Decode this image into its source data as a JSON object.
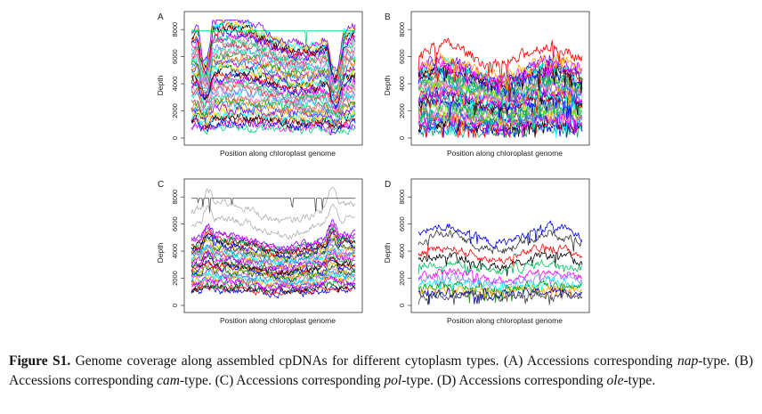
{
  "chart_data": [
    {
      "panel": "A",
      "type": "line",
      "xlabel": "Position along chloroplast genome",
      "ylabel": "Depth",
      "yticks": [
        0,
        2000,
        4000,
        6000,
        8000
      ],
      "ylim": [
        0,
        8800
      ],
      "xlim": [
        0,
        1
      ],
      "n_series": 40,
      "level_range": [
        700,
        7900
      ],
      "top_flat": 7900,
      "profile": "dips-at-ends",
      "noise": 550,
      "colors": [
        "#00d27a",
        "#ff00ff",
        "#0000ff",
        "#ff0000",
        "#000000",
        "#00ffff",
        "#ffd400",
        "#8b00ff",
        "#1e90ff",
        "#ff7f00",
        "#00a000",
        "#ff69b4",
        "#00ffcc",
        "#7f7fff",
        "#ff3030",
        "#a0a0a0"
      ]
    },
    {
      "panel": "B",
      "type": "line",
      "xlabel": "Position along chloroplast genome",
      "ylabel": "Depth",
      "yticks": [
        0,
        2000,
        4000,
        6000,
        8000
      ],
      "ylim": [
        0,
        8800
      ],
      "xlim": [
        0,
        1
      ],
      "n_series": 36,
      "level_range": [
        600,
        5200
      ],
      "top_series": {
        "color": "#ff0000",
        "level": 6100
      },
      "profile": "jagged",
      "noise": 700,
      "colors": [
        "#00a36c",
        "#0000ff",
        "#ff0000",
        "#000000",
        "#00ffff",
        "#ff00ff",
        "#8b00ff",
        "#ffa500",
        "#1e90ff",
        "#00cc66",
        "#ff69b4",
        "#7cfc00",
        "#008b8b",
        "#a0a0a0"
      ]
    },
    {
      "panel": "C",
      "type": "line",
      "xlabel": "Position along chloroplast genome",
      "ylabel": "Depth",
      "yticks": [
        0,
        2000,
        4000,
        6000,
        8000
      ],
      "ylim": [
        0,
        8800
      ],
      "xlim": [
        0,
        1
      ],
      "n_series": 30,
      "level_range": [
        1000,
        4800
      ],
      "top_flat": 7900,
      "top_flat_color": "#555555",
      "grey_series": [
        5800,
        6900
      ],
      "profile": "smooth",
      "noise": 450,
      "colors": [
        "#0000ff",
        "#ff0000",
        "#000000",
        "#00b050",
        "#ff00ff",
        "#8b00ff",
        "#ffa500",
        "#00ffff",
        "#1e90ff",
        "#ff69b4",
        "#006400",
        "#b8b800"
      ]
    },
    {
      "panel": "D",
      "type": "line",
      "xlabel": "Position along chloroplast genome",
      "ylabel": "Depth",
      "yticks": [
        0,
        2000,
        4000,
        6000,
        8000
      ],
      "ylim": [
        0,
        8800
      ],
      "xlim": [
        0,
        1
      ],
      "n_series": 12,
      "series_levels": [
        {
          "color": "#0000ff",
          "level": 5200
        },
        {
          "color": "#333333",
          "level": 4700
        },
        {
          "color": "#ff0000",
          "level": 3800
        },
        {
          "color": "#000000",
          "level": 3300
        },
        {
          "color": "#00c060",
          "level": 2800
        },
        {
          "color": "#ff00ff",
          "level": 2200
        },
        {
          "color": "#7f7fff",
          "level": 1900
        },
        {
          "color": "#00ffff",
          "level": 1500
        },
        {
          "color": "#00a000",
          "level": 1300
        },
        {
          "color": "#ffa500",
          "level": 1100
        },
        {
          "color": "#0000aa",
          "level": 900
        },
        {
          "color": "#444444",
          "level": 700
        }
      ],
      "profile": "jagged",
      "noise": 500
    }
  ],
  "caption": {
    "label": "Figure S1.",
    "seg1": " Genome coverage along assembled cpDNAs for different cytoplasm types. (A) Accessions corresponding ",
    "type1": "nap",
    "seg2": "-type. (B) Accessions corresponding ",
    "type2": "cam",
    "seg3": "-type. (C) Accessions corresponding ",
    "type3": "pol",
    "seg4": "-type. (D) Accessions corresponding ",
    "type4": "ole",
    "seg5": "-type."
  }
}
